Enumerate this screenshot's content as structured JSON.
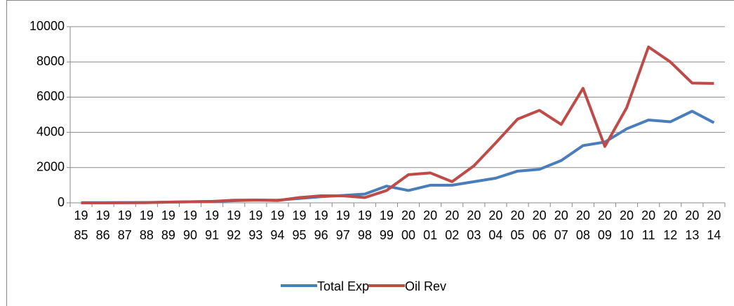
{
  "chart_data": {
    "type": "line",
    "categories": [
      "1985",
      "1986",
      "1987",
      "1988",
      "1989",
      "1990",
      "1991",
      "1992",
      "1993",
      "1994",
      "1995",
      "1996",
      "1997",
      "1998",
      "1999",
      "2000",
      "2001",
      "2002",
      "2003",
      "2004",
      "2005",
      "2006",
      "2007",
      "2008",
      "2009",
      "2010",
      "2011",
      "2012",
      "2013",
      "2014"
    ],
    "series": [
      {
        "name": "Total Exp",
        "color": "#4a7ebb",
        "values": [
          10,
          10,
          15,
          20,
          40,
          60,
          80,
          120,
          160,
          150,
          250,
          350,
          420,
          500,
          950,
          700,
          1000,
          1000,
          1200,
          1400,
          1800,
          1900,
          2400,
          3250,
          3450,
          4200,
          4700,
          4600,
          5200,
          4550
        ]
      },
      {
        "name": "Oil Rev",
        "color": "#be4b48",
        "values": [
          0,
          0,
          5,
          10,
          40,
          60,
          80,
          150,
          160,
          130,
          300,
          400,
          400,
          300,
          700,
          1600,
          1700,
          1200,
          2100,
          3400,
          4750,
          5250,
          4450,
          6500,
          3200,
          5400,
          8850,
          8000,
          6800,
          6780
        ]
      }
    ],
    "ylim": [
      0,
      10000
    ],
    "yticks": [
      0,
      2000,
      4000,
      6000,
      8000,
      10000
    ],
    "grid": true,
    "legend": "bottom"
  }
}
